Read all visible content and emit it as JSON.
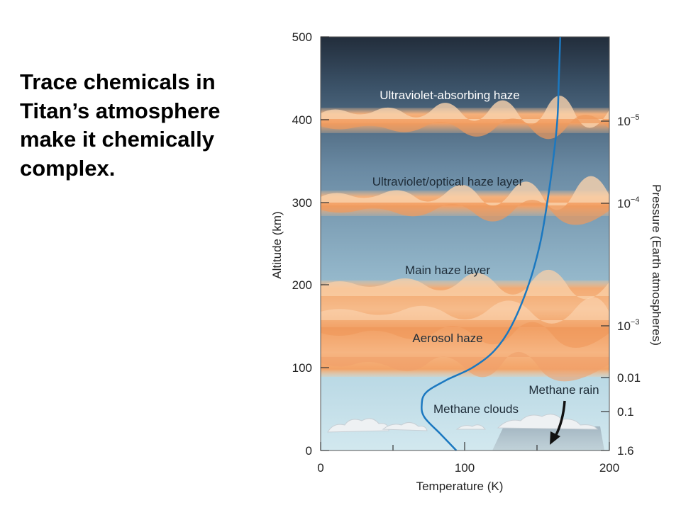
{
  "slide": {
    "text_lines": [
      "Trace chemicals in",
      "Titan’s atmosphere",
      "make it chemically",
      "complex."
    ]
  },
  "diagram": {
    "left_axis": {
      "title": "Altitude (km)",
      "ticks": [
        "0",
        "100",
        "200",
        "300",
        "400",
        "500"
      ]
    },
    "bottom_axis": {
      "title": "Temperature (K)",
      "ticks": [
        "0",
        "100",
        "200"
      ]
    },
    "right_axis": {
      "title": "Pressure (Earth atmospheres)",
      "ticks": [
        {
          "base": "1.6",
          "exp": ""
        },
        {
          "base": "0.1",
          "exp": ""
        },
        {
          "base": "0.01",
          "exp": ""
        },
        {
          "base": "10",
          "exp": "−3"
        },
        {
          "base": "10",
          "exp": "−4"
        },
        {
          "base": "10",
          "exp": "−5"
        }
      ]
    },
    "layers": {
      "uv_absorbing": "Ultraviolet-absorbing haze",
      "uv_optical": "Ultraviolet/optical haze layer",
      "main_haze": "Main haze layer",
      "aerosol": "Aerosol haze",
      "methane_clouds": "Methane clouds",
      "methane_rain": "Methane rain"
    },
    "temperature_profile": [
      {
        "alt": 0,
        "temp": 94
      },
      {
        "alt": 20,
        "temp": 83
      },
      {
        "alt": 40,
        "temp": 72
      },
      {
        "alt": 55,
        "temp": 70
      },
      {
        "alt": 70,
        "temp": 73
      },
      {
        "alt": 85,
        "temp": 87
      },
      {
        "alt": 100,
        "temp": 105
      },
      {
        "alt": 120,
        "temp": 120
      },
      {
        "alt": 150,
        "temp": 132
      },
      {
        "alt": 200,
        "temp": 144
      },
      {
        "alt": 250,
        "temp": 152
      },
      {
        "alt": 300,
        "temp": 157
      },
      {
        "alt": 350,
        "temp": 161
      },
      {
        "alt": 400,
        "temp": 164
      },
      {
        "alt": 450,
        "temp": 165
      },
      {
        "alt": 500,
        "temp": 166
      }
    ],
    "colors": {
      "profile_line": "#1b78c0",
      "haze": "#f2a66a",
      "sky_top": "#243040",
      "sky_bottom": "#cfe6ee"
    }
  }
}
